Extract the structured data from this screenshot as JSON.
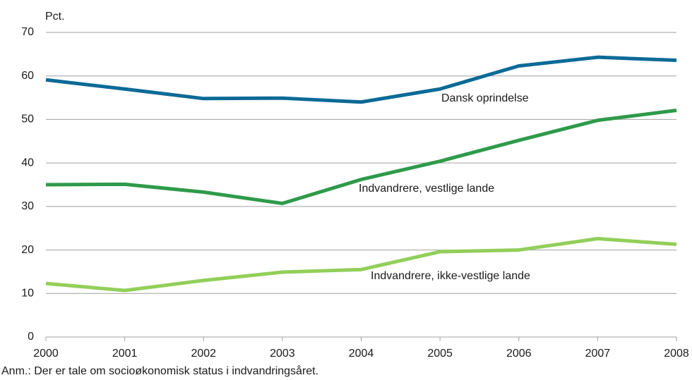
{
  "chart_data": {
    "type": "line",
    "y_label": "Pct.",
    "note": "Anm.: Der er tale om socioøkonomisk status i indvandringsåret.",
    "x": [
      2000,
      2001,
      2002,
      2003,
      2004,
      2005,
      2006,
      2007,
      2008
    ],
    "series": [
      {
        "name": "Dansk oprindelse",
        "color": "#0a6a96",
        "values": [
          59.1,
          57.0,
          54.8,
          54.9,
          54.0,
          57.0,
          62.3,
          64.3,
          63.6
        ]
      },
      {
        "name": "Indvandrere, vestlige lande",
        "color": "#2e9a4a",
        "values": [
          35.0,
          35.1,
          33.3,
          30.7,
          36.2,
          40.4,
          45.2,
          49.8,
          52.1
        ]
      },
      {
        "name": "Indvandrere, ikke-vestlige lande",
        "color": "#92cf5a",
        "values": [
          12.3,
          10.7,
          13.0,
          14.9,
          15.5,
          19.6,
          20.0,
          22.6,
          21.3
        ]
      }
    ],
    "xlim": [
      2000,
      2008
    ],
    "xticks": [
      2000,
      2001,
      2002,
      2003,
      2004,
      2005,
      2006,
      2007,
      2008
    ],
    "ylim": [
      0,
      70
    ],
    "yticks": [
      0,
      10,
      20,
      30,
      40,
      50,
      60,
      70
    ],
    "grid": true
  }
}
